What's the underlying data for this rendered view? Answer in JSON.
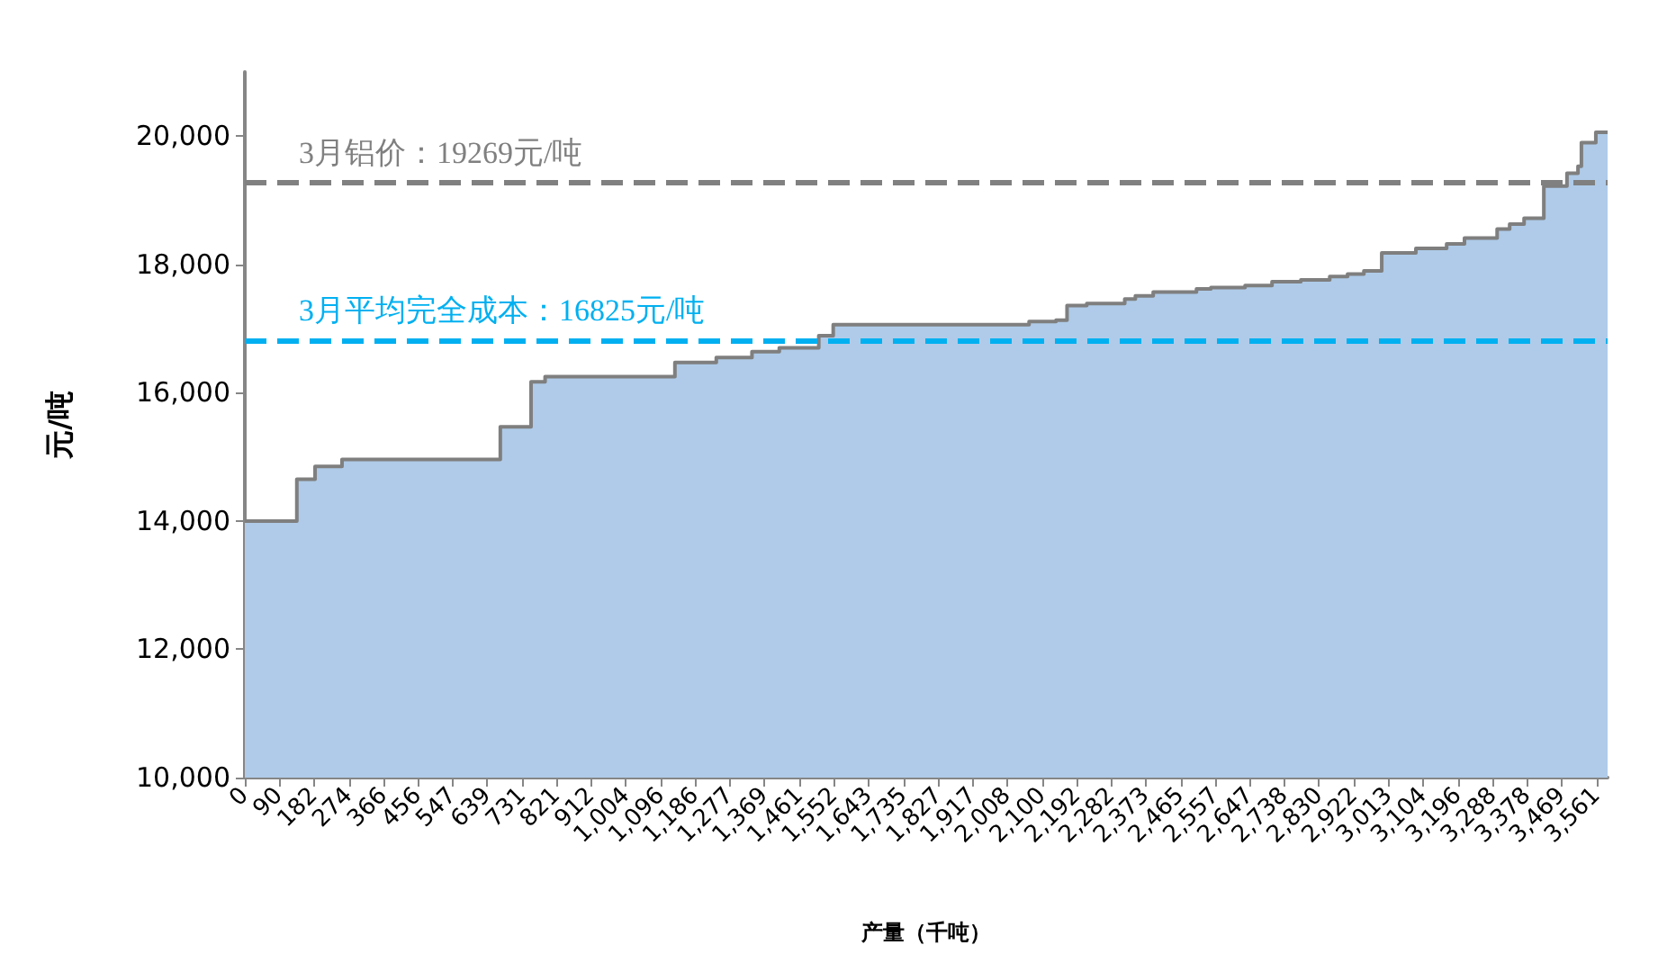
{
  "chart_data": {
    "type": "area",
    "xlabel": "产量（千吨）",
    "ylabel": "元/吨",
    "xlim": [
      0,
      3590
    ],
    "xticks": [
      0,
      90,
      182,
      274,
      366,
      456,
      547,
      639,
      731,
      821,
      912,
      {
        "value": 1004,
        "label": "1,004"
      },
      {
        "value": 1096,
        "label": "1,096"
      },
      {
        "value": 1186,
        "label": "1,186"
      },
      {
        "value": 1277,
        "label": "1,277"
      },
      {
        "value": 1369,
        "label": "1,369"
      },
      {
        "value": 1461,
        "label": "1,461"
      },
      {
        "value": 1552,
        "label": "1,552"
      },
      {
        "value": 1643,
        "label": "1,643"
      },
      {
        "value": 1735,
        "label": "1,735"
      },
      {
        "value": 1827,
        "label": "1,827"
      },
      {
        "value": 1917,
        "label": "1,917"
      },
      {
        "value": 2008,
        "label": "2,008"
      },
      {
        "value": 2100,
        "label": "2,100"
      },
      {
        "value": 2192,
        "label": "2,192"
      },
      {
        "value": 2282,
        "label": "2,282"
      },
      {
        "value": 2373,
        "label": "2,373"
      },
      {
        "value": 2465,
        "label": "2,465"
      },
      {
        "value": 2557,
        "label": "2,557"
      },
      {
        "value": 2647,
        "label": "2,647"
      },
      {
        "value": 2738,
        "label": "2,738"
      },
      {
        "value": 2830,
        "label": "2,830"
      },
      {
        "value": 2922,
        "label": "2,922"
      },
      {
        "value": 3013,
        "label": "3,013"
      },
      {
        "value": 3104,
        "label": "3,104"
      },
      {
        "value": 3196,
        "label": "3,196"
      },
      {
        "value": 3288,
        "label": "3,288"
      },
      {
        "value": 3378,
        "label": "3,378"
      },
      {
        "value": 3469,
        "label": "3,469"
      },
      {
        "value": 3561,
        "label": "3,561"
      }
    ],
    "ylim": [
      10000,
      21000
    ],
    "yticks": [
      {
        "value": 10000,
        "label": "10,000"
      },
      {
        "value": 12000,
        "label": "12,000"
      },
      {
        "value": 14000,
        "label": "14,000"
      },
      {
        "value": 16000,
        "label": "16,000"
      },
      {
        "value": 18000,
        "label": "18,000"
      },
      {
        "value": 20000,
        "label": "20,000"
      }
    ],
    "grid": false,
    "marker": "none",
    "series": [
      {
        "color": "#afcbe9",
        "x": [
          0,
          137,
          185,
          256,
          673,
          754,
          791,
          1133,
          1242,
          1336,
          1408,
          1512,
          1550,
          2066,
          2137,
          2166,
          2218,
          2318,
          2346,
          2393,
          2507,
          2545,
          2635,
          2706,
          2782,
          2858,
          2905,
          2948,
          2995,
          3085,
          3166,
          3213,
          3299,
          3332,
          3370,
          3422,
          3483,
          3512,
          3521,
          3559,
          3590
        ],
        "values": [
          14000,
          14650,
          14850,
          14960,
          15470,
          16170,
          16250,
          16470,
          16550,
          16640,
          16700,
          16890,
          17060,
          17110,
          17130,
          17360,
          17390,
          17460,
          17510,
          17570,
          17620,
          17640,
          17670,
          17730,
          17760,
          17810,
          17850,
          17900,
          18180,
          18250,
          18320,
          18410,
          18550,
          18630,
          18720,
          19220,
          19420,
          19530,
          19900,
          20060,
          20060
        ]
      },
      {
        "type": "step",
        "color": "#7f7f7f",
        "x": [
          0,
          137,
          185,
          256,
          673,
          754,
          791,
          1133,
          1242,
          1336,
          1408,
          1512,
          1550,
          2066,
          2137,
          2166,
          2218,
          2318,
          2346,
          2393,
          2507,
          2545,
          2635,
          2706,
          2782,
          2858,
          2905,
          2948,
          2995,
          3085,
          3166,
          3213,
          3299,
          3332,
          3370,
          3422,
          3483,
          3512,
          3521,
          3559,
          3590
        ],
        "values": [
          14000,
          14650,
          14850,
          14960,
          15470,
          16170,
          16250,
          16470,
          16550,
          16640,
          16700,
          16890,
          17060,
          17110,
          17130,
          17360,
          17390,
          17460,
          17510,
          17570,
          17620,
          17640,
          17670,
          17730,
          17760,
          17810,
          17850,
          17900,
          18180,
          18250,
          18320,
          18410,
          18550,
          18630,
          18720,
          19220,
          19420,
          19530,
          19900,
          20060,
          20060
        ]
      }
    ],
    "ref_lines": [
      {
        "axis": "y",
        "value": 19269,
        "label": "3月铝价：19269元/吨",
        "color": "#808080",
        "line_style": "dashed"
      },
      {
        "axis": "y",
        "value": 16825,
        "label": "3月平均完全成本：16825元/吨",
        "color": "#00b0f0",
        "line_style": "dashed"
      }
    ]
  }
}
